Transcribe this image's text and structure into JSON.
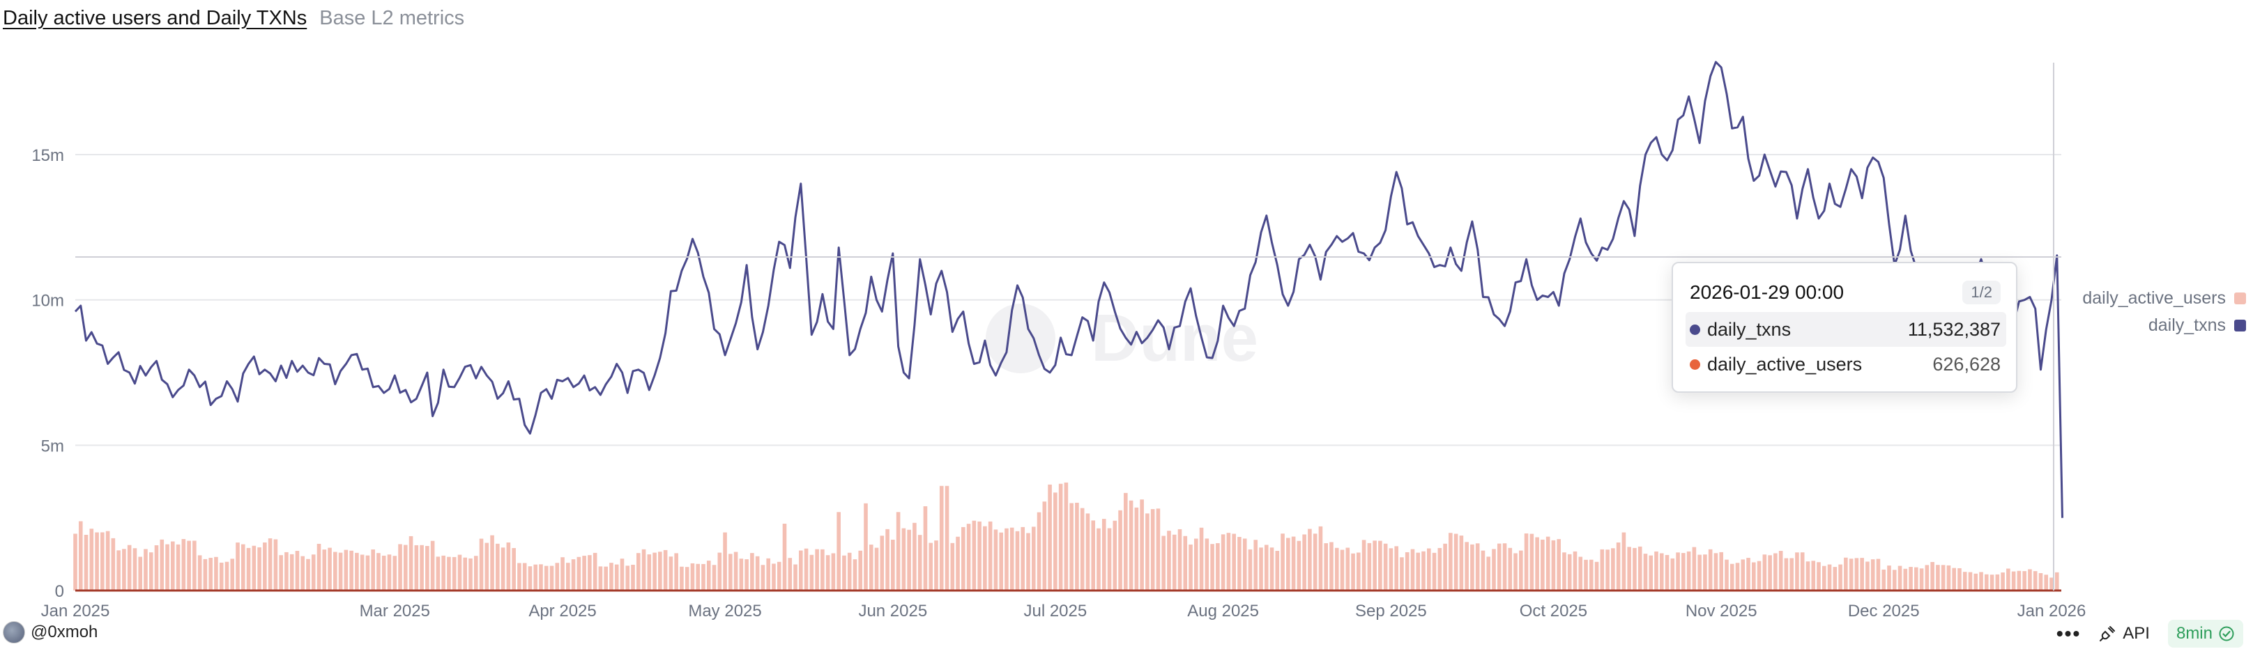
{
  "header": {
    "title": "Daily active users and Daily TXNs",
    "subtitle": "Base L2 metrics"
  },
  "colors": {
    "txns": "#4a4a8c",
    "users": "#f4bfb3",
    "users_dot": "#e8643c",
    "grid": "#e6e7ea",
    "axis": "#6b7280",
    "baseline": "#a33a2a"
  },
  "chart_data": {
    "type": "bar+line",
    "x_range": [
      "2025-01-01",
      "2026-01-29"
    ],
    "y_ticks": [
      "0",
      "5m",
      "10m",
      "15m"
    ],
    "y_tick_values": [
      0,
      5000000,
      10000000,
      15000000
    ],
    "ylim": [
      0,
      18500000
    ],
    "x_tick_labels": [
      "Jan 2025",
      "Mar 2025",
      "Apr 2025",
      "May 2025",
      "Jun 2025",
      "Jul 2025",
      "Aug 2025",
      "Sep 2025",
      "Oct 2025",
      "Nov 2025",
      "Dec 2025",
      "Jan 2026"
    ],
    "x_tick_days": [
      0,
      59,
      90,
      120,
      151,
      181,
      212,
      243,
      273,
      304,
      334,
      365
    ],
    "series": [
      {
        "name": "daily_txns",
        "type": "line",
        "keypoints": [
          [
            0,
            9.6
          ],
          [
            1,
            9.8
          ],
          [
            2,
            8.6
          ],
          [
            4,
            8.5
          ],
          [
            6,
            7.8
          ],
          [
            8,
            8.2
          ],
          [
            10,
            7.5
          ],
          [
            13,
            7.4
          ],
          [
            15,
            7.9
          ],
          [
            17,
            7.1
          ],
          [
            19,
            6.9
          ],
          [
            21,
            7.6
          ],
          [
            23,
            7.0
          ],
          [
            26,
            6.6
          ],
          [
            28,
            7.2
          ],
          [
            30,
            6.5
          ],
          [
            32,
            7.8
          ],
          [
            35,
            7.6
          ],
          [
            37,
            7.2
          ],
          [
            40,
            7.9
          ],
          [
            43,
            7.5
          ],
          [
            46,
            7.8
          ],
          [
            48,
            7.1
          ],
          [
            51,
            8.1
          ],
          [
            53,
            7.6
          ],
          [
            55,
            7.0
          ],
          [
            57,
            6.8
          ],
          [
            59,
            7.4
          ],
          [
            61,
            6.9
          ],
          [
            63,
            6.6
          ],
          [
            65,
            7.5
          ],
          [
            66,
            6.0
          ],
          [
            68,
            7.6
          ],
          [
            70,
            7.0
          ],
          [
            72,
            7.7
          ],
          [
            74,
            7.3
          ],
          [
            76,
            7.4
          ],
          [
            78,
            6.6
          ],
          [
            80,
            7.2
          ],
          [
            82,
            6.6
          ],
          [
            84,
            5.4
          ],
          [
            86,
            6.8
          ],
          [
            88,
            6.6
          ],
          [
            90,
            7.2
          ],
          [
            92,
            7.0
          ],
          [
            94,
            7.4
          ],
          [
            96,
            7.0
          ],
          [
            98,
            7.1
          ],
          [
            100,
            7.8
          ],
          [
            102,
            6.8
          ],
          [
            104,
            7.6
          ],
          [
            106,
            6.9
          ],
          [
            108,
            8.0
          ],
          [
            110,
            10.3
          ],
          [
            112,
            11.0
          ],
          [
            114,
            12.1
          ],
          [
            116,
            10.8
          ],
          [
            118,
            9.0
          ],
          [
            120,
            8.1
          ],
          [
            122,
            9.2
          ],
          [
            124,
            11.2
          ],
          [
            126,
            8.3
          ],
          [
            128,
            9.8
          ],
          [
            130,
            12.0
          ],
          [
            132,
            11.1
          ],
          [
            134,
            14.0
          ],
          [
            136,
            8.8
          ],
          [
            138,
            10.2
          ],
          [
            140,
            9.0
          ],
          [
            141,
            11.8
          ],
          [
            143,
            8.1
          ],
          [
            145,
            9.0
          ],
          [
            147,
            10.8
          ],
          [
            149,
            9.6
          ],
          [
            151,
            11.6
          ],
          [
            152,
            8.4
          ],
          [
            154,
            7.3
          ],
          [
            156,
            11.4
          ],
          [
            158,
            9.5
          ],
          [
            160,
            11.0
          ],
          [
            162,
            8.9
          ],
          [
            164,
            9.6
          ],
          [
            166,
            7.8
          ],
          [
            168,
            8.6
          ],
          [
            170,
            7.4
          ],
          [
            172,
            8.2
          ],
          [
            174,
            10.5
          ],
          [
            176,
            9.0
          ],
          [
            178,
            8.1
          ],
          [
            180,
            7.5
          ],
          [
            182,
            8.7
          ],
          [
            184,
            8.1
          ],
          [
            186,
            9.4
          ],
          [
            188,
            8.6
          ],
          [
            190,
            10.6
          ],
          [
            192,
            9.6
          ],
          [
            194,
            8.7
          ],
          [
            196,
            8.9
          ],
          [
            198,
            8.7
          ],
          [
            200,
            9.3
          ],
          [
            202,
            8.3
          ],
          [
            204,
            9.1
          ],
          [
            206,
            10.4
          ],
          [
            208,
            8.7
          ],
          [
            210,
            8.0
          ],
          [
            212,
            9.8
          ],
          [
            214,
            9.1
          ],
          [
            216,
            9.7
          ],
          [
            218,
            11.3
          ],
          [
            220,
            12.9
          ],
          [
            222,
            11.2
          ],
          [
            224,
            9.8
          ],
          [
            226,
            11.4
          ],
          [
            228,
            11.9
          ],
          [
            230,
            10.7
          ],
          [
            232,
            11.9
          ],
          [
            234,
            12.0
          ],
          [
            236,
            12.3
          ],
          [
            238,
            11.6
          ],
          [
            240,
            11.8
          ],
          [
            242,
            12.4
          ],
          [
            244,
            14.4
          ],
          [
            246,
            12.6
          ],
          [
            248,
            12.2
          ],
          [
            250,
            11.6
          ],
          [
            252,
            11.2
          ],
          [
            254,
            11.8
          ],
          [
            256,
            11.0
          ],
          [
            258,
            12.7
          ],
          [
            260,
            10.1
          ],
          [
            262,
            9.5
          ],
          [
            264,
            9.1
          ],
          [
            266,
            10.6
          ],
          [
            268,
            11.4
          ],
          [
            270,
            10.0
          ],
          [
            272,
            10.1
          ],
          [
            274,
            9.8
          ],
          [
            276,
            11.4
          ],
          [
            278,
            12.8
          ],
          [
            280,
            11.6
          ],
          [
            282,
            11.8
          ],
          [
            284,
            12.1
          ],
          [
            286,
            13.4
          ],
          [
            288,
            12.2
          ],
          [
            290,
            15.0
          ],
          [
            292,
            15.6
          ],
          [
            294,
            14.8
          ],
          [
            296,
            16.2
          ],
          [
            298,
            17.0
          ],
          [
            300,
            15.4
          ],
          [
            302,
            17.7
          ],
          [
            304,
            18.0
          ],
          [
            306,
            15.9
          ],
          [
            308,
            16.3
          ],
          [
            310,
            14.1
          ],
          [
            312,
            15.0
          ],
          [
            314,
            13.9
          ],
          [
            316,
            14.4
          ],
          [
            318,
            12.8
          ],
          [
            320,
            14.5
          ],
          [
            322,
            12.8
          ],
          [
            324,
            14.0
          ],
          [
            326,
            13.2
          ],
          [
            328,
            14.5
          ],
          [
            330,
            13.5
          ],
          [
            332,
            14.9
          ],
          [
            334,
            14.2
          ],
          [
            336,
            11.2
          ],
          [
            338,
            12.9
          ],
          [
            340,
            11.1
          ],
          [
            342,
            10.8
          ],
          [
            344,
            10.5
          ],
          [
            346,
            10.0
          ],
          [
            348,
            10.9
          ],
          [
            350,
            11.0
          ],
          [
            352,
            11.4
          ],
          [
            354,
            10.8
          ],
          [
            356,
            10.3
          ],
          [
            358,
            9.2
          ],
          [
            360,
            10.0
          ],
          [
            362,
            9.7
          ],
          [
            363,
            7.6
          ],
          [
            365,
            10.0
          ],
          [
            366,
            11.53
          ],
          [
            367,
            2.5
          ]
        ],
        "unit": "millions"
      },
      {
        "name": "daily_active_users",
        "type": "bar",
        "weekly_levels_millions": [
          1.7,
          1.5,
          1.2,
          1.3,
          1.1,
          1.25,
          1.2,
          1.1,
          1.3,
          1.35,
          1.2,
          1.4,
          0.95,
          0.8,
          0.95,
          1.0,
          0.95,
          0.9,
          0.95,
          1.05,
          1.0,
          1.4,
          1.6,
          1.9,
          1.7,
          2.1,
          2.7,
          2.4,
          2.3,
          2.0,
          1.3,
          1.6,
          1.4,
          1.6,
          1.3,
          1.2,
          1.4,
          1.3,
          1.5,
          1.4,
          1.1,
          1.2,
          1.2,
          1.0,
          1.0,
          0.95,
          0.9,
          0.8,
          0.75,
          0.7,
          0.6,
          0.55,
          0.5
        ],
        "unit": "millions"
      }
    ],
    "legend": [
      "daily_active_users",
      "daily_txns"
    ],
    "legend_position": "right",
    "tooltip": {
      "date": "2026-01-29 00:00",
      "page": "1/2",
      "rows": [
        {
          "name": "daily_txns",
          "value": "11,532,387"
        },
        {
          "name": "daily_active_users",
          "value": "626,628"
        }
      ]
    },
    "watermark": "Dune"
  },
  "footer": {
    "author": "@0xmoh",
    "more": "•••",
    "api_label": "API",
    "freshness": "8min"
  }
}
